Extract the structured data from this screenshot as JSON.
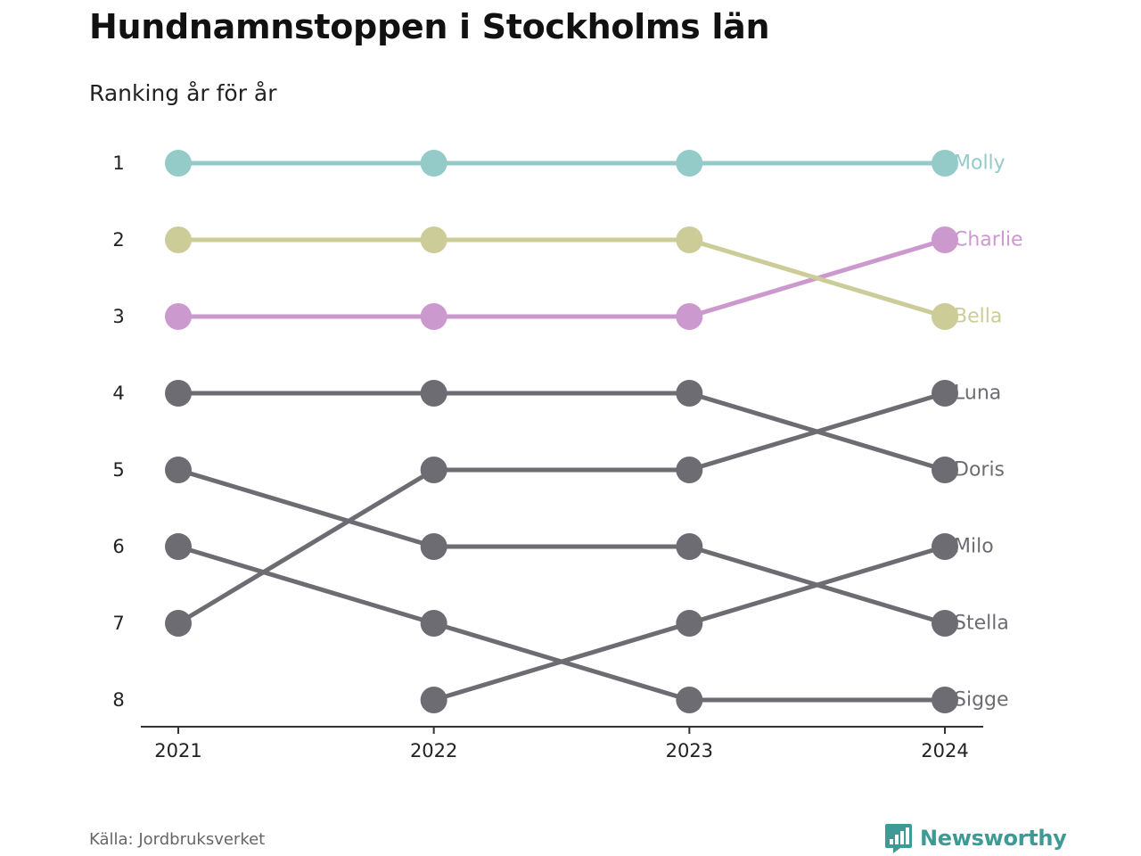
{
  "title": "Hundnamnstoppen i Stockholms län",
  "subtitle": "Ranking år för år",
  "source": "Källa: Jordbruksverket",
  "brand": {
    "name": "Newsworthy",
    "icon": "bar-chart-speech-bubble-icon",
    "color": "#3d9a94"
  },
  "chart_data": {
    "type": "line",
    "chart_kind": "bump",
    "x": [
      "2021",
      "2022",
      "2023",
      "2024"
    ],
    "y_ticks": [
      "1",
      "2",
      "3",
      "4",
      "5",
      "6",
      "7",
      "8"
    ],
    "ylim": [
      1,
      8
    ],
    "y_inverted": true,
    "grid": false,
    "legend": "direct labels at right end",
    "series": [
      {
        "name": "Molly",
        "values": [
          1,
          1,
          1,
          1
        ],
        "color": "#94cbc9"
      },
      {
        "name": "Charlie",
        "values": [
          3,
          3,
          3,
          2
        ],
        "color": "#cc99cf"
      },
      {
        "name": "Bella",
        "values": [
          2,
          2,
          2,
          3
        ],
        "color": "#cccc99"
      },
      {
        "name": "Luna",
        "values": [
          7,
          5,
          5,
          4
        ],
        "color": "#6d6c72"
      },
      {
        "name": "Doris",
        "values": [
          4,
          4,
          4,
          5
        ],
        "color": "#6d6c72"
      },
      {
        "name": "Milo",
        "values": [
          null,
          8,
          7,
          6
        ],
        "color": "#6d6c72"
      },
      {
        "name": "Stella",
        "values": [
          5,
          6,
          6,
          7
        ],
        "color": "#6d6c72"
      },
      {
        "name": "Sigge",
        "values": [
          6,
          7,
          8,
          8
        ],
        "color": "#6d6c72"
      }
    ]
  }
}
